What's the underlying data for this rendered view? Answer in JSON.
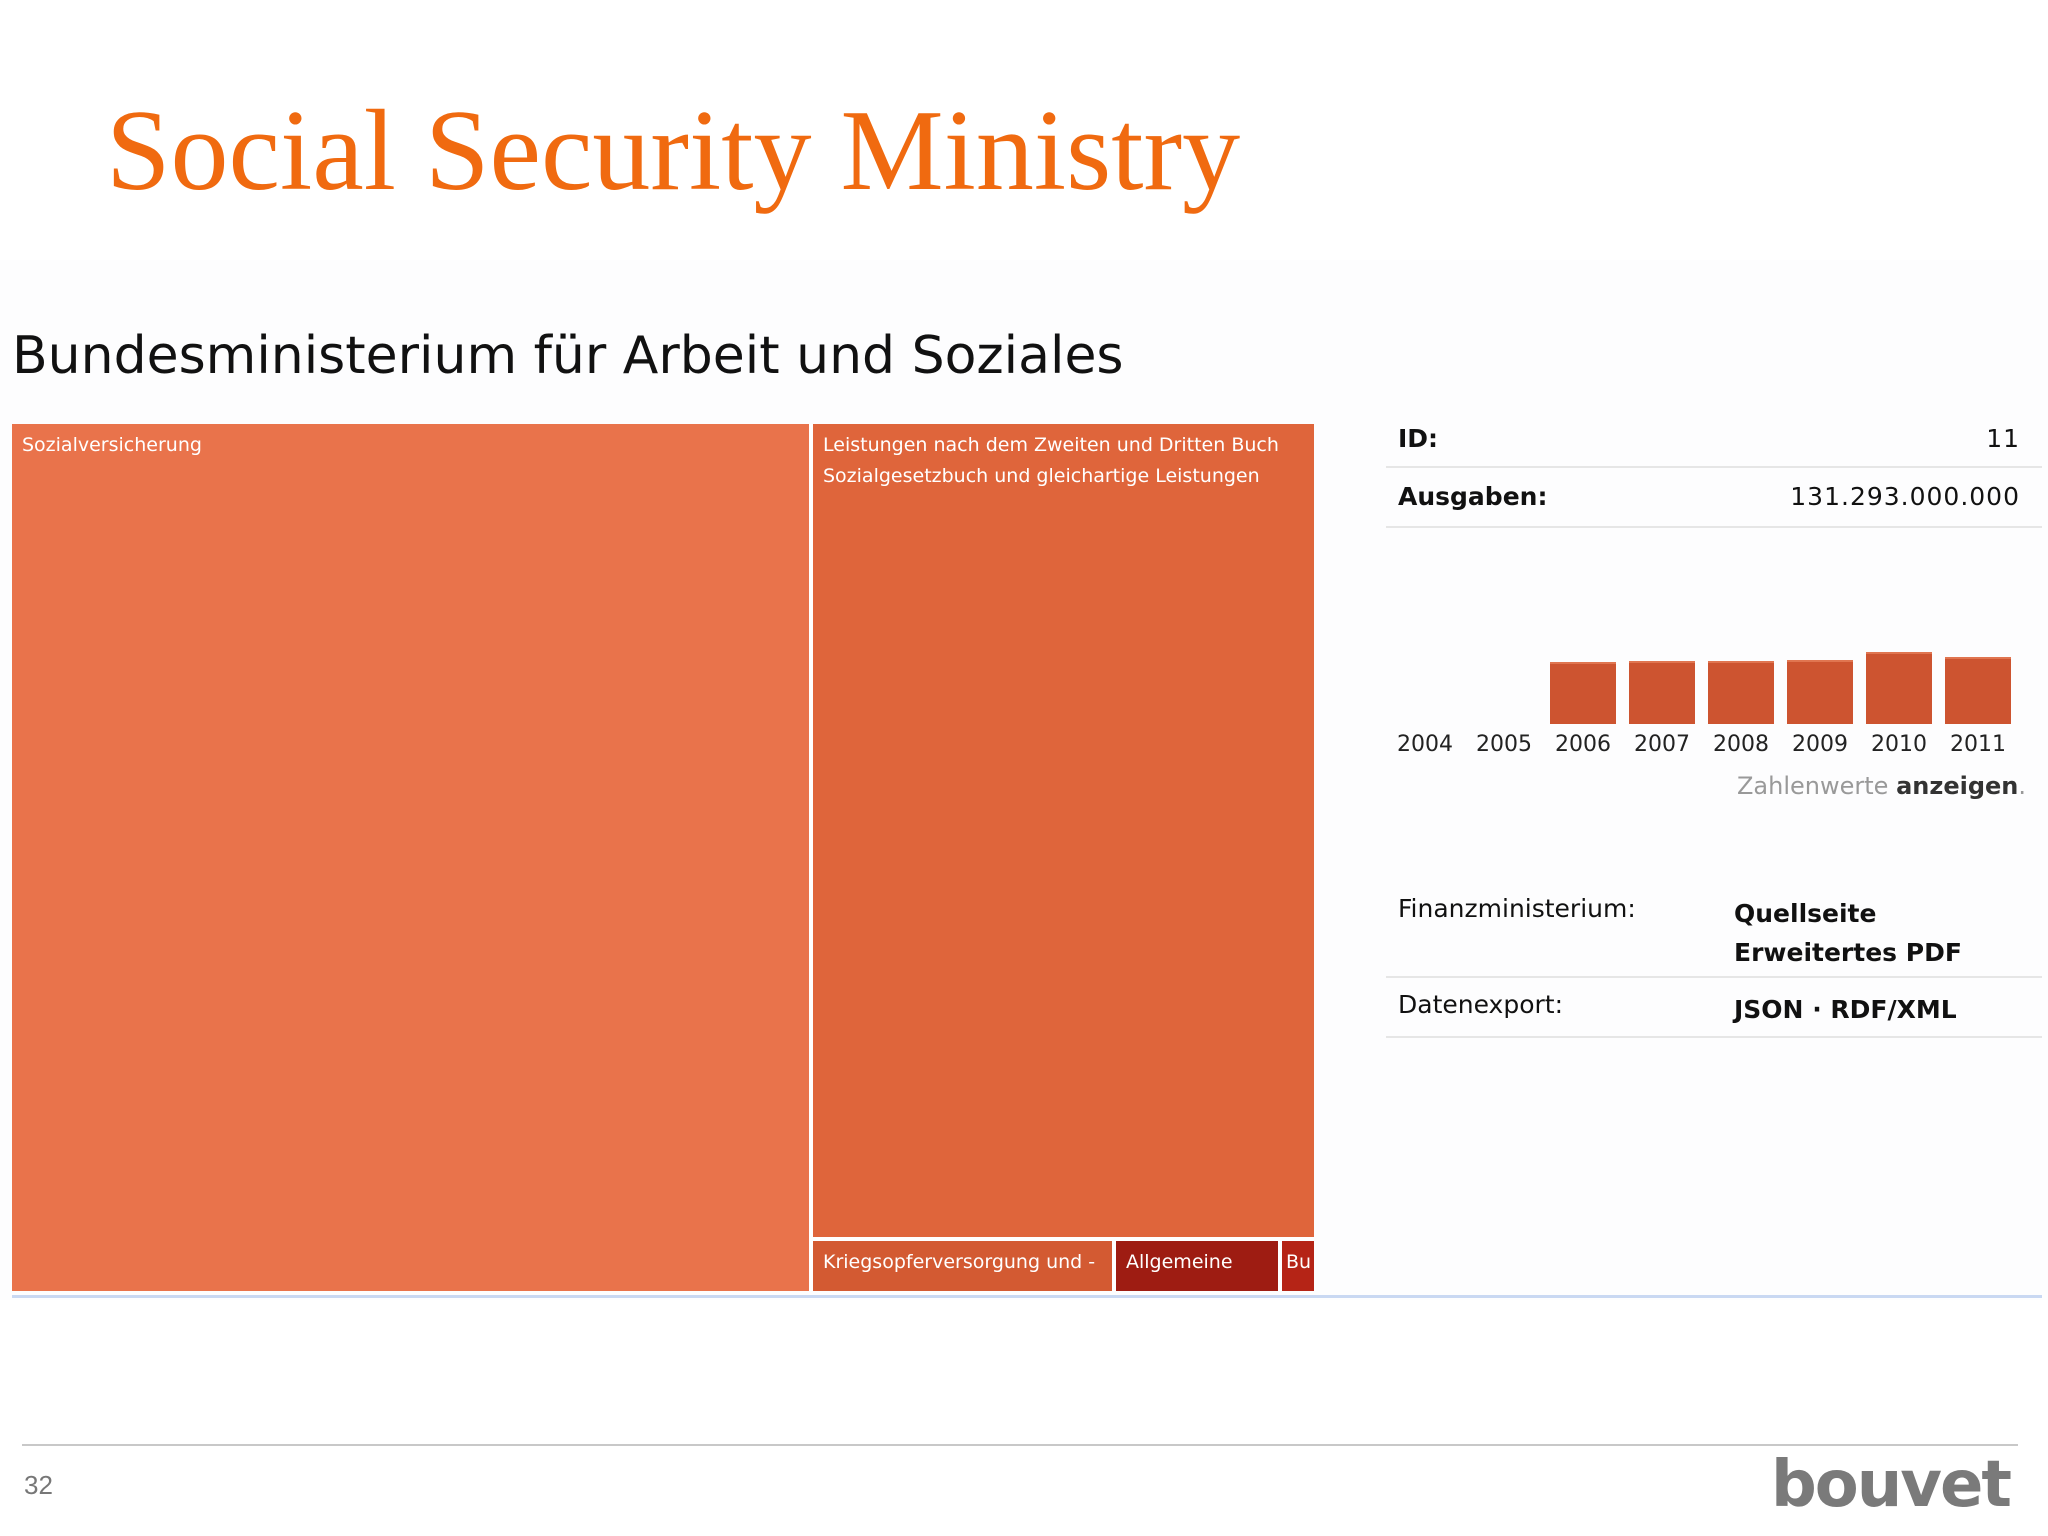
{
  "slide": {
    "title": "Social Security Ministry",
    "page_number": "32",
    "logo_text": "bouvet"
  },
  "ministry": {
    "name": "Bundesministerium für Arbeit und Soziales"
  },
  "treemap": {
    "tiles": [
      {
        "label": "Sozialversicherung",
        "color": "#e9734b"
      },
      {
        "label": "Leistungen nach dem Zweiten und Dritten Buch Sozialgesetzbuch und gleichartige Leistungen",
        "color": "#df653b"
      },
      {
        "label": "Kriegsopferversorgung und -",
        "color": "#d35a32"
      },
      {
        "label": "Allgemeine",
        "color": "#9e1c12"
      },
      {
        "label": "Bu",
        "color": "#b52416"
      }
    ]
  },
  "details": {
    "id_label": "ID:",
    "id_value": "11",
    "ausgaben_label": "Ausgaben:",
    "ausgaben_value": "131.293.000.000"
  },
  "chart_data": {
    "type": "bar",
    "categories": [
      "2004",
      "2005",
      "2006",
      "2007",
      "2008",
      "2009",
      "2010",
      "2011"
    ],
    "values": [
      null,
      null,
      118,
      120,
      120,
      122,
      138,
      128
    ],
    "bar_color": "#cd5430",
    "title": "",
    "xlabel": "",
    "ylabel": ""
  },
  "zahlenwerte": {
    "prefix": "Zahlenwerte",
    "link": "anzeigen",
    "suffix": "."
  },
  "sources": {
    "finanz_label": "Finanzministerium:",
    "quellseite": "Quellseite",
    "erweitertes_pdf": "Erweitertes PDF",
    "export_label": "Datenexport:",
    "json": "JSON",
    "separator": "·",
    "rdf_xml": "RDF/XML"
  },
  "colors": {
    "title_orange": "#f06a10",
    "treemap_main": "#e9734b",
    "bar": "#cd5430",
    "logo_gray": "#7a7a7a"
  }
}
